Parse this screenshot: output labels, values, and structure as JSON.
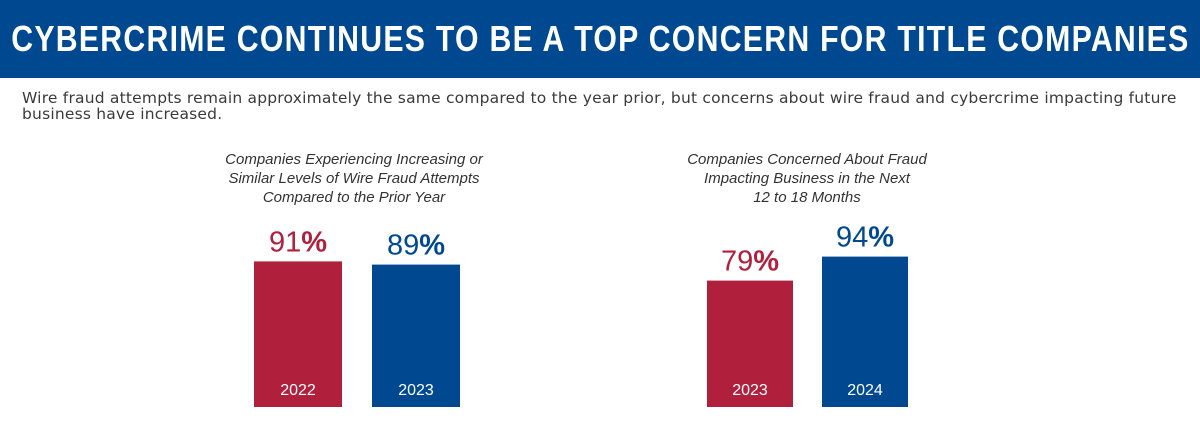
{
  "header": {
    "title": "CYBERCRIME CONTINUES TO BE A TOP CONCERN FOR TITLE COMPANIES",
    "subtitle": "Wire fraud attempts remain approximately the same compared to the year prior, but concerns about wire fraud and cybercrime impacting future business have increased."
  },
  "colors": {
    "banner": "#004990",
    "red": "#b0203d",
    "blue": "#004990"
  },
  "chart_data": [
    {
      "type": "bar",
      "title": "Companies Experiencing Increasing or\nSimilar Levels of Wire Fraud Attempts\nCompared to the Prior Year",
      "categories": [
        "2022",
        "2023"
      ],
      "values": [
        91,
        89
      ],
      "unit": "%",
      "colors": [
        "#b0203d",
        "#004990"
      ],
      "ylim": [
        0,
        100
      ]
    },
    {
      "type": "bar",
      "title": "Companies Concerned About Fraud\nImpacting Business in the Next\n12 to 18 Months",
      "categories": [
        "2023",
        "2024"
      ],
      "values": [
        79,
        94
      ],
      "unit": "%",
      "colors": [
        "#b0203d",
        "#004990"
      ],
      "ylim": [
        0,
        100
      ]
    }
  ]
}
